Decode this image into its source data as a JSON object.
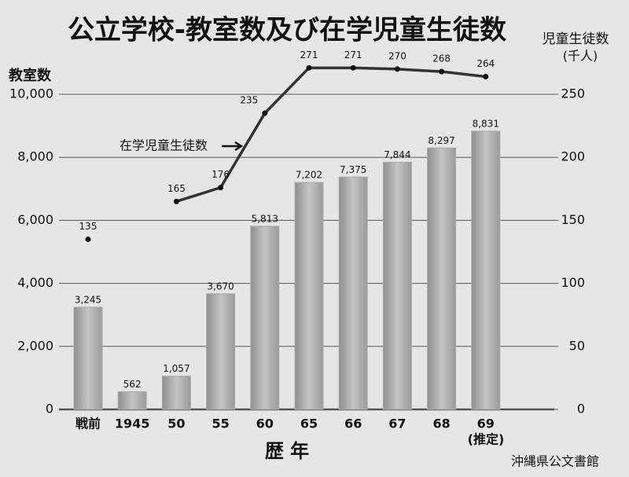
{
  "chart_data": {
    "type": "bar",
    "title": "公立学校-教室数及び在学児童生徒数",
    "ylabel": "教室数",
    "y2label": [
      "児童生徒数",
      "(千人)"
    ],
    "xlabel": "歴 年",
    "categories": [
      "戦前",
      "1945",
      "50",
      "55",
      "60",
      "65",
      "66",
      "67",
      "68",
      "69"
    ],
    "category_note": "(推定)",
    "series": [
      {
        "name": "教室数",
        "type": "bar",
        "color": "#a9a9a9",
        "values": [
          3245,
          562,
          1057,
          3670,
          5813,
          7202,
          7375,
          7844,
          8297,
          8831
        ],
        "value_labels": [
          "3,245",
          "562",
          "1,057",
          "3,670",
          "5,813",
          "7,202",
          "7,375",
          "7,844",
          "8,297",
          "8,831"
        ]
      },
      {
        "name": "在学児童生徒数",
        "type": "line",
        "axis": "y2",
        "color": "#333333",
        "values": [
          135,
          null,
          165,
          176,
          235,
          271,
          271,
          270,
          268,
          264
        ]
      }
    ],
    "ylim": [
      0,
      10000
    ],
    "yticks": [
      0,
      {
        "value": 2000,
        "label": "2,000"
      },
      {
        "value": 4000,
        "label": "4,000"
      },
      {
        "value": 6000,
        "label": "6,000"
      },
      {
        "value": 8000,
        "label": "8,000"
      },
      {
        "value": 10000,
        "label": "10,000"
      }
    ],
    "y2lim": [
      0,
      250
    ],
    "y2ticks": [
      0,
      50,
      100,
      150,
      200,
      250
    ],
    "grid": true,
    "source": "沖縄県公文書館"
  }
}
